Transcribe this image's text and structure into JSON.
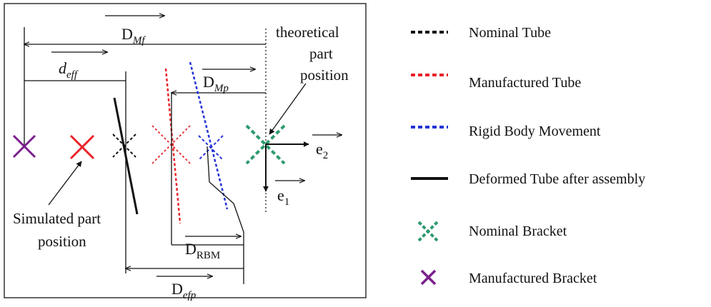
{
  "diagram": {
    "labels": {
      "dmf_main": "D",
      "dmf_sub": "Mf",
      "deff_main": "d",
      "deff_sub": "eff",
      "dmp_main": "D",
      "dmp_sub": "Mp",
      "drbm_main": "D",
      "drbm_sub": "RBM",
      "defp_main": "D",
      "defp_sub": "efp",
      "e1_main": "e",
      "e1_sub": "1",
      "e2_main": "e",
      "e2_sub": "2",
      "theoretical_line1": "theoretical",
      "theoretical_line2": "part",
      "theoretical_line3": "position",
      "simulated_line1": "Simulated part",
      "simulated_line2": "position"
    },
    "colors": {
      "purple": "#7a1f8c",
      "red": "#e8242b",
      "blue": "#2433d6",
      "green": "#2f9a6e",
      "black": "#111111"
    }
  },
  "legend": {
    "items": [
      {
        "label": "Nominal Tube",
        "symbol": "dashed-line",
        "color": "#111111"
      },
      {
        "label": "Manufactured Tube",
        "symbol": "dashed-line",
        "color": "#e8242b"
      },
      {
        "label": "Rigid Body Movement",
        "symbol": "dashed-line",
        "color": "#2433d6"
      },
      {
        "label": "Deformed Tube after assembly",
        "symbol": "solid-line",
        "color": "#111111"
      },
      {
        "label": "Nominal Bracket",
        "symbol": "dashed-x",
        "color": "#2f9a6e"
      },
      {
        "label": "Manufactured Bracket",
        "symbol": "solid-x",
        "color": "#7a1f8c"
      }
    ]
  }
}
